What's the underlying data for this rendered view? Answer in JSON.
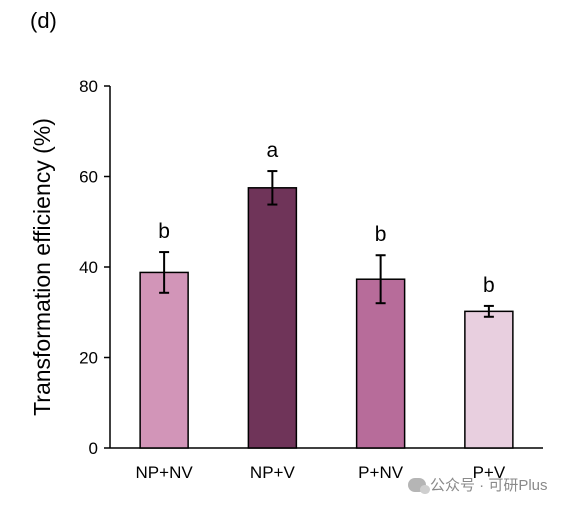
{
  "panel_label": "(d)",
  "watermark": "公众号 · 可研Plus",
  "chart_data": {
    "type": "bar",
    "title": "",
    "xlabel": "",
    "ylabel": "Transformation efficiency (%)",
    "ylim": [
      0,
      80
    ],
    "yticks": [
      0,
      20,
      40,
      60,
      80
    ],
    "grid": false,
    "categories": [
      "NP+NV",
      "NP+V",
      "P+NV",
      "P+V"
    ],
    "values": [
      38.8,
      57.5,
      37.3,
      30.2
    ],
    "errors": [
      4.5,
      3.7,
      5.3,
      1.2
    ],
    "significance": [
      "b",
      "a",
      "b",
      "b"
    ],
    "colors": [
      "#d295b8",
      "#6f3459",
      "#b76c9a",
      "#e8cfdf"
    ]
  }
}
